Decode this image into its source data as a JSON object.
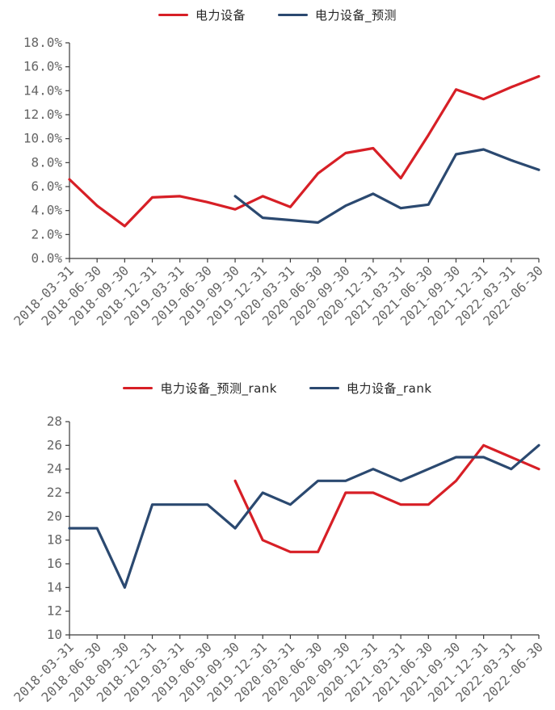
{
  "axis_color": "#3a3a3a",
  "tick_label_color": "#666666",
  "chart_data": [
    {
      "type": "line",
      "title": "",
      "xlabel": "",
      "ylabel": "",
      "legend_position": "top",
      "grid": false,
      "ylim": [
        0,
        18
      ],
      "ytick_step": 2,
      "ytick_format": "percent1",
      "ytick_labels": [
        "0.0%",
        "2.0%",
        "4.0%",
        "6.0%",
        "8.0%",
        "10.0%",
        "12.0%",
        "14.0%",
        "16.0%",
        "18.0%"
      ],
      "categories": [
        "2018-03-31",
        "2018-06-30",
        "2018-09-30",
        "2018-12-31",
        "2019-03-31",
        "2019-06-30",
        "2019-09-30",
        "2019-12-31",
        "2020-03-31",
        "2020-06-30",
        "2020-09-30",
        "2020-12-31",
        "2021-03-31",
        "2021-06-30",
        "2021-09-30",
        "2021-12-31",
        "2022-03-31",
        "2022-06-30"
      ],
      "series": [
        {
          "name": "电力设备",
          "color": "#d71f26",
          "values": [
            6.6,
            4.4,
            2.7,
            5.1,
            5.2,
            4.7,
            4.1,
            5.2,
            4.3,
            7.1,
            8.8,
            9.2,
            6.7,
            10.3,
            14.1,
            13.3,
            14.3,
            15.2
          ]
        },
        {
          "name": "电力设备_预测",
          "color": "#2b4970",
          "values": [
            null,
            null,
            null,
            null,
            null,
            null,
            5.2,
            3.4,
            3.2,
            3.0,
            4.4,
            5.4,
            4.2,
            4.5,
            8.7,
            9.1,
            8.2,
            7.4
          ]
        }
      ]
    },
    {
      "type": "line",
      "title": "",
      "xlabel": "",
      "ylabel": "",
      "legend_position": "top",
      "grid": false,
      "ylim": [
        10,
        28
      ],
      "ytick_step": 2,
      "ytick_format": "int",
      "ytick_labels": [
        "10",
        "12",
        "14",
        "16",
        "18",
        "20",
        "22",
        "24",
        "26",
        "28"
      ],
      "categories": [
        "2018-03-31",
        "2018-06-30",
        "2018-09-30",
        "2018-12-31",
        "2019-03-31",
        "2019-06-30",
        "2019-09-30",
        "2019-12-31",
        "2020-03-31",
        "2020-06-30",
        "2020-09-30",
        "2020-12-31",
        "2021-03-31",
        "2021-06-30",
        "2021-09-30",
        "2021-12-31",
        "2022-03-31",
        "2022-06-30"
      ],
      "series": [
        {
          "name": "电力设备_预测_rank",
          "color": "#d71f26",
          "values": [
            null,
            null,
            null,
            null,
            null,
            null,
            23,
            18,
            17,
            17,
            22,
            22,
            21,
            21,
            23,
            26,
            25,
            24
          ]
        },
        {
          "name": "电力设备_rank",
          "color": "#2b4970",
          "values": [
            19,
            19,
            14,
            21,
            21,
            21,
            19,
            22,
            21,
            23,
            23,
            24,
            23,
            24,
            25,
            25,
            24,
            26
          ]
        }
      ]
    }
  ]
}
